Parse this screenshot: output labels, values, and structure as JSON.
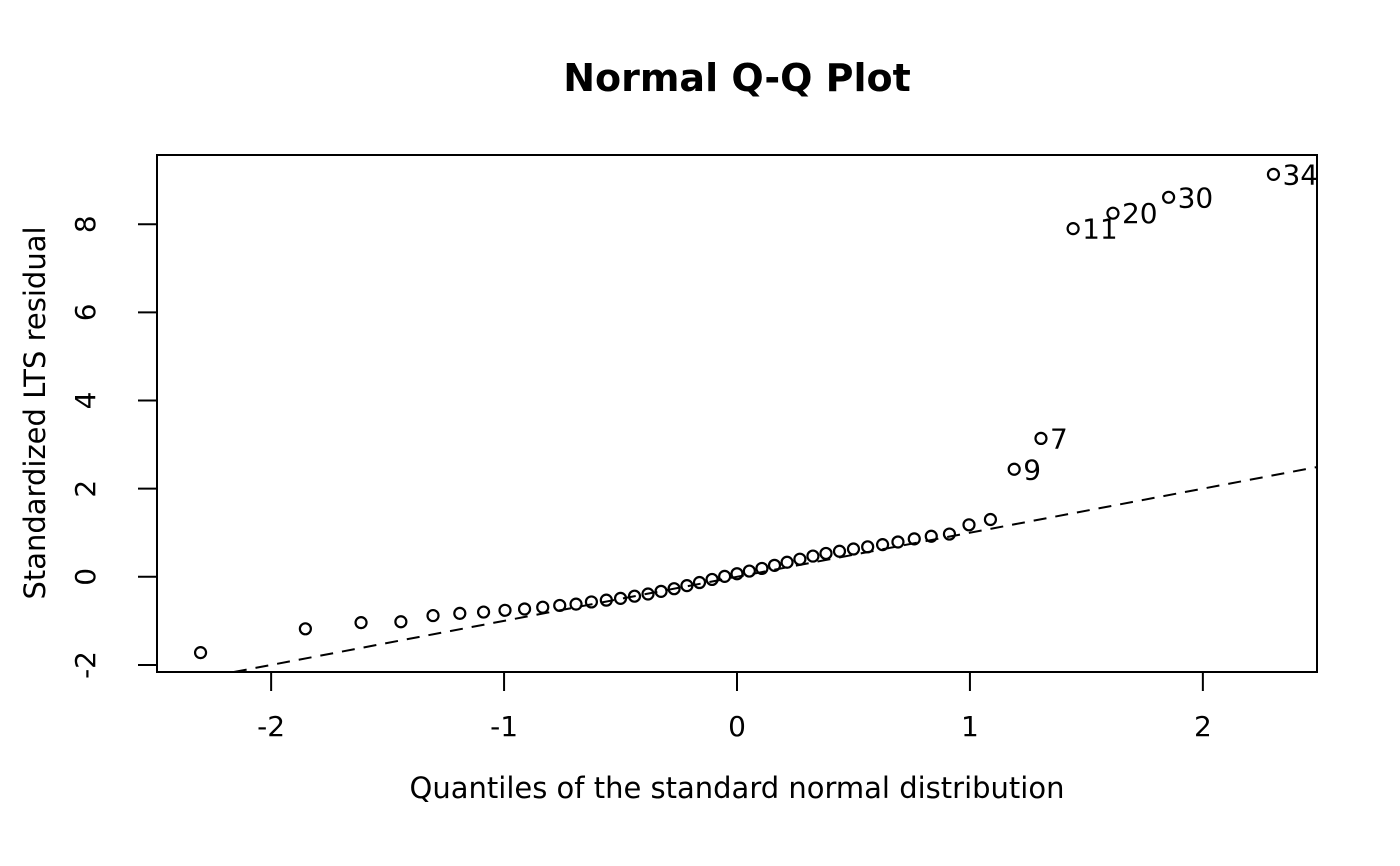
{
  "figure": {
    "background": "#ffffff",
    "foreground": "#000000"
  },
  "chart_data": {
    "type": "scatter",
    "title": "Normal Q-Q Plot",
    "xlabel": "Quantiles of the standard normal distribution",
    "ylabel": "Standardized LTS residual",
    "xlim": [
      -2.49,
      2.49
    ],
    "ylim": [
      -2.16,
      9.57
    ],
    "xticks": [
      -2,
      -1,
      0,
      1,
      2
    ],
    "yticks": [
      -2,
      0,
      2,
      4,
      6,
      8
    ],
    "grid": false,
    "legend": null,
    "marker": {
      "shape": "open-circle",
      "radius": 5.5,
      "stroke_width": 2.2,
      "color": "#000000",
      "fill": "none"
    },
    "reference_line": {
      "style": "dashed",
      "slope": 1,
      "intercept": 0,
      "color": "#000000",
      "dash": [
        13,
        9
      ],
      "stroke_width": 2
    },
    "points": {
      "x": [
        -2.303,
        -1.853,
        -1.614,
        -1.443,
        -1.305,
        -1.19,
        -1.088,
        -0.996,
        -0.912,
        -0.834,
        -0.761,
        -0.691,
        -0.625,
        -0.561,
        -0.5,
        -0.44,
        -0.382,
        -0.326,
        -0.27,
        -0.215,
        -0.161,
        -0.107,
        -0.053,
        0.0,
        0.053,
        0.107,
        0.161,
        0.215,
        0.27,
        0.326,
        0.382,
        0.44,
        0.5,
        0.561,
        0.625,
        0.691,
        0.761,
        0.834,
        0.912,
        0.996,
        1.088,
        1.19,
        1.305,
        1.443,
        1.614,
        1.853,
        2.303
      ],
      "y": [
        -1.72,
        -1.18,
        -1.04,
        -1.02,
        -0.88,
        -0.83,
        -0.8,
        -0.76,
        -0.73,
        -0.69,
        -0.65,
        -0.62,
        -0.57,
        -0.53,
        -0.49,
        -0.44,
        -0.39,
        -0.33,
        -0.27,
        -0.2,
        -0.13,
        -0.06,
        0.01,
        0.07,
        0.13,
        0.19,
        0.26,
        0.33,
        0.4,
        0.47,
        0.53,
        0.58,
        0.63,
        0.68,
        0.73,
        0.79,
        0.86,
        0.92,
        0.97,
        1.18,
        1.3,
        2.44,
        3.14,
        7.9,
        8.25,
        8.61,
        9.13
      ]
    },
    "labeled_points": [
      {
        "x": 1.19,
        "y": 2.44,
        "label": "9"
      },
      {
        "x": 1.305,
        "y": 3.14,
        "label": "7"
      },
      {
        "x": 1.443,
        "y": 7.9,
        "label": "11"
      },
      {
        "x": 1.614,
        "y": 8.25,
        "label": "20"
      },
      {
        "x": 1.853,
        "y": 8.61,
        "label": "30"
      },
      {
        "x": 2.303,
        "y": 9.13,
        "label": "34"
      }
    ]
  }
}
